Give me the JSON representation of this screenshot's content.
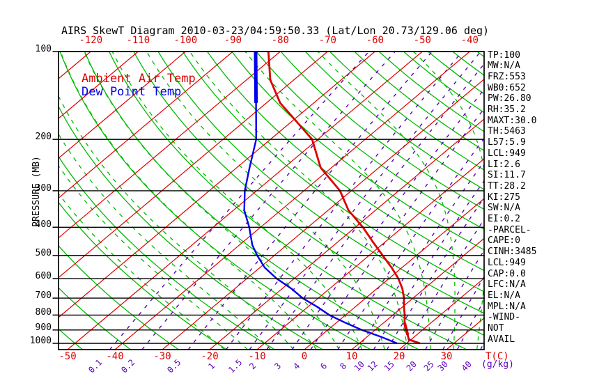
{
  "title": "AIRS SkewT Diagram 2010-03-23/04:59:50.33 (Lat/Lon 20.73/129.06 deg)",
  "legend": {
    "temp_label": "Ambient Air Temp",
    "dew_label": "Dew Point Temp"
  },
  "axes": {
    "pressure_label": "PRESSURE (MB)",
    "pressure_ticks": [
      100,
      200,
      300,
      400,
      500,
      600,
      700,
      800,
      900,
      1000
    ],
    "top_temp_ticks": [
      -120,
      -110,
      -100,
      -90,
      -80,
      -70,
      -60,
      -50,
      -40
    ],
    "bottom_temp_ticks": [
      -50,
      -40,
      -30,
      -20,
      -10,
      0,
      10,
      20,
      30
    ],
    "temp_unit": "T(C)",
    "mixing_ratio_ticks": [
      0.1,
      0.2,
      0.5,
      1,
      1.5,
      2,
      3,
      4,
      6,
      8,
      10,
      12,
      15,
      20,
      25,
      30,
      40
    ],
    "mixing_ratio_unit": "(g/kg)"
  },
  "indices": [
    "TP:100",
    "MW:N/A",
    "FRZ:553",
    "WB0:652",
    "PW:26.80",
    "RH:35.2",
    "MAXT:30.0",
    "TH:5463",
    "L57:5.9",
    "LCL:949",
    "LI:2.6",
    "SI:11.7",
    "TT:28.2",
    "KI:275",
    "SW:N/A",
    "EI:0.2",
    "-PARCEL-",
    "CAPE:0",
    "CINH:3485",
    "LCL:949",
    "CAP:0.0",
    "LFC:N/A",
    "EL:N/A",
    "MPL:N/A",
    "-WIND-",
    "NOT",
    "AVAIL"
  ],
  "colors": {
    "temperature": "#dd0000",
    "dewpoint": "#0000ee",
    "isotherm": "#dd0000",
    "adiabat": "#00bb00",
    "mixing": "#5b00b8",
    "grid": "#000000",
    "background": "#ffffff"
  },
  "chart_data": {
    "type": "line",
    "subtype": "skewt-logp",
    "title": "AIRS SkewT Diagram 2010-03-23/04:59:50.33 (Lat/Lon 20.73/129.06 deg)",
    "x_axis": {
      "label": "T(C)",
      "skewed": true,
      "bottom_ticks": [
        -50,
        -40,
        -30,
        -20,
        -10,
        0,
        10,
        20,
        30
      ],
      "top_ticks": [
        -120,
        -110,
        -100,
        -90,
        -80,
        -70,
        -60,
        -50,
        -40
      ]
    },
    "y_axis": {
      "label": "PRESSURE (MB)",
      "scale": "log",
      "range": [
        100,
        1050
      ],
      "ticks": [
        100,
        200,
        300,
        400,
        500,
        600,
        700,
        800,
        900,
        1000
      ]
    },
    "legend_position": "top-left-inside",
    "grid": true,
    "series": [
      {
        "name": "Ambient Air Temp",
        "color": "#dd0000",
        "points_pressure_mb_temp_c": [
          [
            100,
            -82.5
          ],
          [
            125,
            -75.0
          ],
          [
            150,
            -67.1
          ],
          [
            200,
            -51.2
          ],
          [
            250,
            -42.3
          ],
          [
            300,
            -32.4
          ],
          [
            350,
            -25.7
          ],
          [
            400,
            -18.4
          ],
          [
            450,
            -12.5
          ],
          [
            500,
            -7.1
          ],
          [
            550,
            -2.2
          ],
          [
            600,
            2.0
          ],
          [
            650,
            5.4
          ],
          [
            700,
            8.1
          ],
          [
            750,
            10.3
          ],
          [
            800,
            12.5
          ],
          [
            850,
            14.4
          ],
          [
            900,
            16.6
          ],
          [
            935,
            18.1
          ],
          [
            970,
            19.5
          ],
          [
            1000,
            22.8
          ]
        ]
      },
      {
        "name": "Dew Point Temp",
        "color": "#0000ee",
        "points_pressure_mb_temp_c": [
          [
            100,
            -85.2
          ],
          [
            150,
            -72.2
          ],
          [
            200,
            -63.0
          ],
          [
            250,
            -57.3
          ],
          [
            300,
            -52.5
          ],
          [
            350,
            -47.7
          ],
          [
            400,
            -42.4
          ],
          [
            460,
            -37.3
          ],
          [
            500,
            -33.6
          ],
          [
            550,
            -29.0
          ],
          [
            600,
            -23.7
          ],
          [
            650,
            -18.0
          ],
          [
            700,
            -13.3
          ],
          [
            750,
            -8.0
          ],
          [
            800,
            -3.4
          ],
          [
            850,
            1.9
          ],
          [
            900,
            7.2
          ],
          [
            950,
            13.0
          ],
          [
            1000,
            18.0
          ]
        ]
      }
    ],
    "background_lines": {
      "isotherms_degC": [
        -130,
        -120,
        -110,
        -100,
        -90,
        -80,
        -70,
        -60,
        -50,
        -40,
        -30,
        -20,
        -10,
        0,
        10,
        20,
        30
      ],
      "dry_adiabats_theta_degC": [
        -50,
        -40,
        -30,
        -20,
        -10,
        0,
        10,
        20,
        30,
        40,
        50,
        60,
        70,
        80,
        90,
        100,
        110,
        120,
        130,
        140,
        150,
        160,
        170,
        180,
        190
      ],
      "moist_adiabats_thetaw_degC": [
        -20,
        -15,
        -10,
        -5,
        0,
        5,
        10,
        15,
        20,
        25,
        30,
        35,
        40
      ],
      "mixing_ratio_g_kg": [
        0.1,
        0.2,
        0.5,
        1,
        1.5,
        2,
        3,
        4,
        6,
        8,
        10,
        12,
        15,
        20,
        25,
        30,
        40
      ]
    }
  }
}
